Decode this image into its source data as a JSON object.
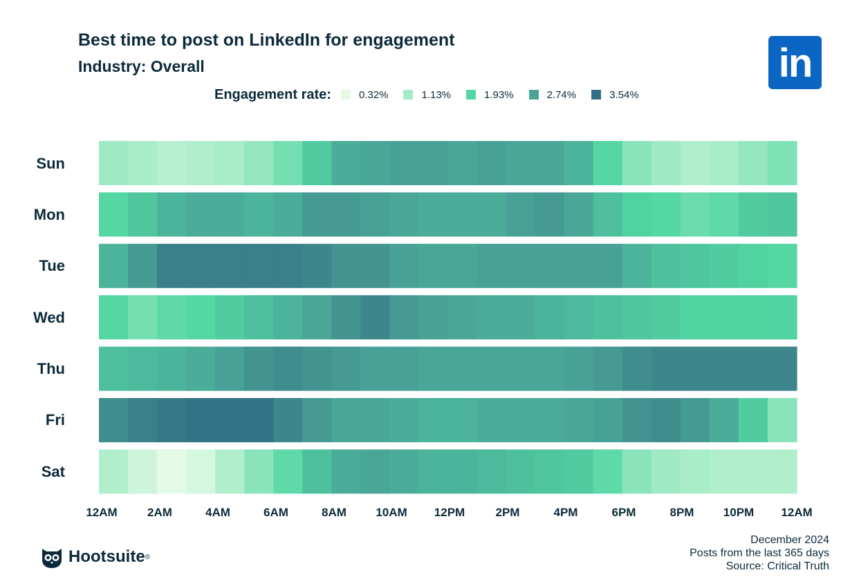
{
  "header": {
    "title": "Best time to post on LinkedIn for engagement",
    "subtitle": "Industry: Overall"
  },
  "legend": {
    "title": "Engagement rate:",
    "items": [
      {
        "label": "0.32%",
        "color": "#e3fbe6"
      },
      {
        "label": "1.13%",
        "color": "#a6ebc7"
      },
      {
        "label": "1.93%",
        "color": "#52d6a2"
      },
      {
        "label": "2.74%",
        "color": "#4aa597"
      },
      {
        "label": "3.54%",
        "color": "#336f84"
      }
    ]
  },
  "logo": {
    "text": "in",
    "icon": "linkedin-icon"
  },
  "brand": {
    "name": "Hootsuite",
    "mark": "®",
    "icon": "owl-icon"
  },
  "footer": {
    "line1": "December 2024",
    "line2": "Posts from the last 365 days",
    "line3": "Source: Critical Truth"
  },
  "chart_data": {
    "type": "heatmap",
    "title": "Best time to post on LinkedIn for engagement",
    "subtitle": "Industry: Overall",
    "legend_title": "Engagement rate:",
    "color_scale": [
      {
        "value": 0.32,
        "color": "#e3fbe6"
      },
      {
        "value": 1.13,
        "color": "#a6ebc7"
      },
      {
        "value": 1.93,
        "color": "#52d6a2"
      },
      {
        "value": 2.74,
        "color": "#4aa597"
      },
      {
        "value": 3.54,
        "color": "#336f84"
      }
    ],
    "rows": [
      "Sun",
      "Mon",
      "Tue",
      "Wed",
      "Thu",
      "Fri",
      "Sat"
    ],
    "x_tick_labels": [
      "12AM",
      "2AM",
      "4AM",
      "6AM",
      "8AM",
      "10AM",
      "12PM",
      "2PM",
      "4PM",
      "6PM",
      "8PM",
      "10PM",
      "12AM"
    ],
    "columns_per_row": 24,
    "values": [
      [
        1.2,
        1.1,
        0.9,
        1.0,
        1.1,
        1.3,
        1.6,
        2.1,
        2.6,
        2.7,
        2.8,
        2.8,
        2.7,
        2.8,
        2.7,
        2.7,
        2.5,
        1.9,
        1.4,
        1.2,
        1.0,
        1.1,
        1.3,
        1.5
      ],
      [
        1.9,
        2.2,
        2.5,
        2.6,
        2.6,
        2.5,
        2.6,
        2.9,
        2.9,
        2.8,
        2.7,
        2.6,
        2.6,
        2.6,
        2.8,
        2.9,
        2.7,
        2.3,
        2.0,
        1.9,
        1.7,
        1.8,
        2.1,
        2.2
      ],
      [
        2.5,
        2.9,
        3.3,
        3.3,
        3.3,
        3.3,
        3.3,
        3.2,
        3.0,
        3.0,
        2.8,
        2.7,
        2.7,
        2.8,
        2.8,
        2.8,
        2.8,
        2.8,
        2.5,
        2.3,
        2.2,
        2.1,
        2.0,
        1.9
      ],
      [
        1.9,
        1.6,
        1.8,
        1.9,
        2.1,
        2.3,
        2.5,
        2.7,
        3.0,
        3.2,
        2.9,
        2.8,
        2.7,
        2.6,
        2.6,
        2.5,
        2.4,
        2.3,
        2.2,
        2.1,
        2.0,
        2.0,
        2.0,
        2.0
      ],
      [
        2.3,
        2.4,
        2.5,
        2.6,
        2.8,
        3.0,
        3.1,
        3.0,
        2.9,
        2.8,
        2.8,
        2.7,
        2.7,
        2.7,
        2.7,
        2.7,
        2.8,
        2.9,
        3.1,
        3.2,
        3.2,
        3.2,
        3.2,
        3.2
      ],
      [
        3.1,
        3.3,
        3.4,
        3.5,
        3.5,
        3.5,
        3.2,
        2.9,
        2.7,
        2.7,
        2.6,
        2.5,
        2.5,
        2.6,
        2.6,
        2.6,
        2.7,
        2.8,
        3.0,
        3.1,
        2.9,
        2.6,
        2.1,
        1.4
      ],
      [
        1.0,
        0.6,
        0.3,
        0.5,
        1.0,
        1.4,
        1.8,
        2.3,
        2.6,
        2.7,
        2.6,
        2.5,
        2.5,
        2.4,
        2.3,
        2.2,
        2.1,
        1.8,
        1.4,
        1.2,
        1.1,
        1.0,
        1.0,
        1.0
      ]
    ]
  }
}
